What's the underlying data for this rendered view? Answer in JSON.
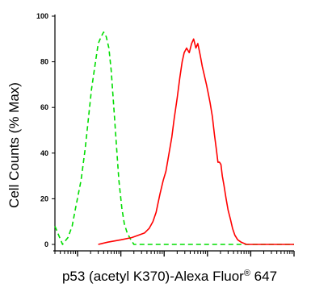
{
  "chart_data": {
    "type": "line",
    "xlabel": "p53 (acetyl K370)-Alexa Fluor",
    "xlabel_sup": "®",
    "xlabel_tail": " 647",
    "ylabel": "Cell Counts (% Max)",
    "ylim": [
      0,
      100
    ],
    "y_ticks": [
      "0",
      "20",
      "40",
      "60",
      "80",
      "100"
    ],
    "x_scale": "log",
    "xlim": [
      0.3,
      100000
    ],
    "grid": false,
    "series": [
      {
        "color": "#00dd00",
        "style": "dashed",
        "points": [
          [
            0.3,
            8
          ],
          [
            0.45,
            0
          ],
          [
            0.6,
            3
          ],
          [
            0.75,
            8
          ],
          [
            0.9,
            16
          ],
          [
            1.2,
            28
          ],
          [
            1.5,
            42
          ],
          [
            1.8,
            56
          ],
          [
            2.1,
            68
          ],
          [
            2.5,
            78
          ],
          [
            3.0,
            88
          ],
          [
            3.5,
            91
          ],
          [
            4.0,
            93
          ],
          [
            4.6,
            91
          ],
          [
            5.3,
            86
          ],
          [
            6.0,
            76
          ],
          [
            7.0,
            58
          ],
          [
            8.0,
            42
          ],
          [
            9.0,
            28
          ],
          [
            10.5,
            16
          ],
          [
            12.0,
            9
          ],
          [
            14.0,
            5
          ],
          [
            17.0,
            2
          ],
          [
            20.0,
            0
          ],
          [
            30.0,
            0
          ],
          [
            100.0,
            0
          ],
          [
            1000.0,
            0
          ],
          [
            10000.0,
            0
          ],
          [
            100000.0,
            0
          ]
        ]
      },
      {
        "color": "#ff0000",
        "style": "solid",
        "points": [
          [
            3.0,
            0
          ],
          [
            5.0,
            1
          ],
          [
            10.0,
            2
          ],
          [
            18.0,
            3
          ],
          [
            25.0,
            4
          ],
          [
            35.0,
            5
          ],
          [
            45.0,
            7
          ],
          [
            55.0,
            10
          ],
          [
            65.0,
            14
          ],
          [
            80.0,
            22
          ],
          [
            95.0,
            28
          ],
          [
            110.0,
            32
          ],
          [
            130.0,
            40
          ],
          [
            150.0,
            47
          ],
          [
            170.0,
            55
          ],
          [
            200.0,
            64
          ],
          [
            230.0,
            73
          ],
          [
            260.0,
            80
          ],
          [
            290.0,
            84
          ],
          [
            330.0,
            86
          ],
          [
            380.0,
            84
          ],
          [
            430.0,
            88
          ],
          [
            480.0,
            90
          ],
          [
            540.0,
            86
          ],
          [
            600.0,
            88
          ],
          [
            680.0,
            83
          ],
          [
            760.0,
            78
          ],
          [
            850.0,
            74
          ],
          [
            950.0,
            70
          ],
          [
            1050.0,
            66
          ],
          [
            1150.0,
            62
          ],
          [
            1300.0,
            56
          ],
          [
            1450.0,
            48
          ],
          [
            1600.0,
            42
          ],
          [
            1750.0,
            36
          ],
          [
            1900.0,
            36
          ],
          [
            2050.0,
            35
          ],
          [
            2200.0,
            30
          ],
          [
            2400.0,
            26
          ],
          [
            2700.0,
            20
          ],
          [
            3000.0,
            15
          ],
          [
            3400.0,
            11
          ],
          [
            3800.0,
            7
          ],
          [
            4300.0,
            4
          ],
          [
            5000.0,
            2
          ],
          [
            6000.0,
            1
          ],
          [
            8000.0,
            0
          ],
          [
            20000.0,
            0
          ],
          [
            100000.0,
            0
          ]
        ]
      }
    ]
  }
}
